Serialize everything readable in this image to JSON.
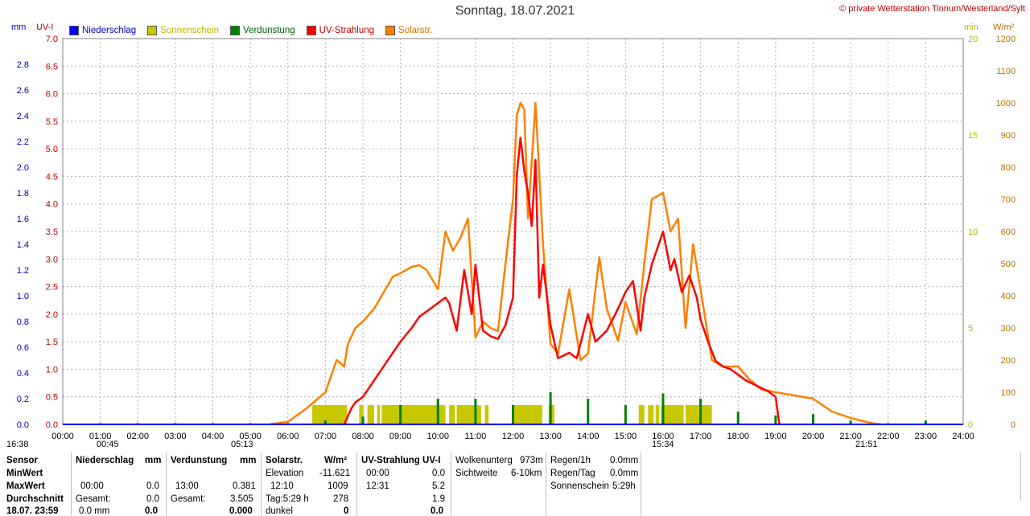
{
  "header": {
    "title": "Sonntag, 18.07.2021",
    "copyright": "© private Wetterstation Tinnum/Westerland/Sylt",
    "unit_mm": "mm",
    "unit_uv": "UV-I",
    "unit_min": "min",
    "unit_wm2": "W/m²"
  },
  "legend": [
    {
      "label": "Niederschlag",
      "color": "#0000ff"
    },
    {
      "label": "Sonnenschein",
      "color": "#c8c800"
    },
    {
      "label": "Verdunstung",
      "color": "#008000"
    },
    {
      "label": "UV-Strahlung",
      "color": "#ff0000"
    },
    {
      "label": "Solarstr.",
      "color": "#ff8000"
    }
  ],
  "colors": {
    "mm_axis": "#0000c0",
    "uv_axis": "#c00000",
    "min_axis": "#b8b800",
    "wm2_axis": "#c07000",
    "rain": "#0000ff",
    "sun": "#c8c800",
    "evap": "#008000",
    "uv": "#ff0000",
    "solar": "#ff8000",
    "grid": "#b0b0b0"
  },
  "chart_data": {
    "type": "line",
    "xlabel": "",
    "xlim": [
      0,
      24
    ],
    "x_ticks": [
      "00:00",
      "01:00",
      "02:00",
      "03:00",
      "04:00",
      "05:00",
      "06:00",
      "07:00",
      "08:00",
      "09:00",
      "10:00",
      "11:00",
      "12:00",
      "13:00",
      "14:00",
      "15:00",
      "16:00",
      "17:00",
      "18:00",
      "19:00",
      "20:00",
      "21:00",
      "22:00",
      "23:00",
      "24:00"
    ],
    "axes": {
      "mm": {
        "ticks": [
          "0.0",
          "0.2",
          "0.4",
          "0.6",
          "0.8",
          "1.0",
          "1.2",
          "1.4",
          "1.6",
          "1.8",
          "2.0",
          "2.2",
          "2.4",
          "2.6",
          "2.8"
        ],
        "range": [
          0,
          3.0
        ]
      },
      "uv": {
        "ticks": [
          "0.0",
          "0.5",
          "1.0",
          "1.5",
          "2.0",
          "2.5",
          "3.0",
          "3.5",
          "4.0",
          "4.5",
          "5.0",
          "5.5",
          "6.0",
          "6.5",
          "7.0"
        ],
        "range": [
          0,
          7.0
        ]
      },
      "min": {
        "ticks": [
          "0",
          "5",
          "10",
          "15",
          "20"
        ],
        "range": [
          0,
          20
        ]
      },
      "wm2": {
        "ticks": [
          "0",
          "100",
          "200",
          "300",
          "400",
          "500",
          "600",
          "700",
          "800",
          "900",
          "1000",
          "1100",
          "1200"
        ],
        "range": [
          0,
          1200
        ]
      }
    },
    "grid": true,
    "series": [
      {
        "name": "Solarstr.",
        "axis": "wm2",
        "x": [
          5.5,
          6.0,
          6.5,
          7.0,
          7.3,
          7.5,
          7.6,
          7.8,
          8.0,
          8.3,
          8.5,
          8.8,
          9.0,
          9.3,
          9.5,
          9.7,
          10.0,
          10.2,
          10.4,
          10.6,
          10.8,
          11.0,
          11.2,
          11.4,
          11.6,
          11.8,
          12.0,
          12.1,
          12.2,
          12.3,
          12.4,
          12.6,
          12.8,
          13.0,
          13.2,
          13.5,
          13.8,
          14.0,
          14.3,
          14.5,
          14.8,
          15.0,
          15.3,
          15.5,
          15.7,
          16.0,
          16.2,
          16.4,
          16.6,
          16.8,
          17.0,
          17.3,
          17.6,
          18.0,
          18.3,
          18.6,
          19.0,
          19.5,
          20.0,
          20.5,
          21.0,
          21.5,
          21.8
        ],
        "values": [
          0,
          8,
          50,
          100,
          200,
          180,
          250,
          300,
          320,
          360,
          400,
          460,
          470,
          490,
          495,
          480,
          420,
          600,
          540,
          580,
          640,
          270,
          320,
          300,
          290,
          500,
          700,
          960,
          1000,
          980,
          640,
          1000,
          560,
          250,
          220,
          420,
          200,
          220,
          520,
          360,
          260,
          380,
          280,
          500,
          700,
          720,
          600,
          640,
          300,
          560,
          420,
          200,
          180,
          180,
          140,
          110,
          100,
          90,
          80,
          40,
          20,
          5,
          0
        ]
      },
      {
        "name": "UV-Strahlung",
        "axis": "uv",
        "x": [
          7.5,
          7.7,
          7.8,
          8.0,
          8.3,
          8.5,
          8.8,
          9.0,
          9.3,
          9.5,
          9.8,
          10.0,
          10.2,
          10.3,
          10.5,
          10.7,
          10.9,
          11.0,
          11.2,
          11.4,
          11.6,
          11.8,
          12.0,
          12.1,
          12.2,
          12.3,
          12.4,
          12.5,
          12.6,
          12.7,
          12.8,
          13.0,
          13.2,
          13.5,
          13.7,
          14.0,
          14.2,
          14.5,
          14.8,
          15.0,
          15.2,
          15.4,
          15.5,
          15.7,
          16.0,
          16.2,
          16.3,
          16.5,
          16.7,
          16.9,
          17.0,
          17.2,
          17.4,
          17.6,
          17.8,
          18.0,
          18.2,
          18.5,
          18.8,
          19.0,
          19.1
        ],
        "values": [
          0,
          0.3,
          0.4,
          0.5,
          0.8,
          1.0,
          1.3,
          1.5,
          1.75,
          1.95,
          2.1,
          2.2,
          2.3,
          2.2,
          1.7,
          2.8,
          2.0,
          2.9,
          1.7,
          1.6,
          1.55,
          1.8,
          2.3,
          4.5,
          5.2,
          4.6,
          4.2,
          3.6,
          4.8,
          2.3,
          2.9,
          1.8,
          1.2,
          1.3,
          1.2,
          2.0,
          1.5,
          1.7,
          2.1,
          2.4,
          2.6,
          1.7,
          2.3,
          2.9,
          3.5,
          2.8,
          3.0,
          2.4,
          2.7,
          2.3,
          1.9,
          1.5,
          1.15,
          1.05,
          1.0,
          0.9,
          0.8,
          0.7,
          0.6,
          0.5,
          0
        ]
      },
      {
        "name": "Sonnenschein",
        "axis": "min",
        "segments": [
          [
            6.65,
            7.58
          ],
          [
            7.9,
            8.02
          ],
          [
            8.12,
            8.3
          ],
          [
            8.38,
            8.45
          ],
          [
            8.5,
            10.2
          ],
          [
            10.3,
            10.45
          ],
          [
            10.5,
            11.15
          ],
          [
            11.25,
            11.35
          ],
          [
            12.0,
            12.78
          ],
          [
            12.95,
            13.1
          ],
          [
            15.35,
            15.5
          ],
          [
            15.6,
            15.75
          ],
          [
            15.8,
            15.9
          ],
          [
            15.95,
            16.55
          ],
          [
            16.6,
            17.3
          ]
        ],
        "value": 1.0
      },
      {
        "name": "Verdunstung",
        "axis": "mm",
        "x": [
          1.0,
          2.0,
          3.0,
          4.0,
          5.0,
          6.0,
          7.0,
          8.0,
          9.0,
          10.0,
          11.0,
          12.0,
          13.0,
          14.0,
          15.0,
          16.0,
          17.0,
          18.0,
          19.0,
          20.0,
          21.0,
          22.0,
          23.0
        ],
        "values": [
          0.01,
          0.01,
          0.01,
          0.01,
          0.01,
          0.01,
          0.03,
          0.06,
          0.15,
          0.2,
          0.2,
          0.15,
          0.25,
          0.2,
          0.15,
          0.24,
          0.2,
          0.1,
          0.07,
          0.08,
          0.03,
          0.01,
          0.03
        ]
      },
      {
        "name": "Niederschlag",
        "axis": "mm",
        "x": [],
        "values": []
      }
    ],
    "markers": [
      {
        "label": "16:38"
      },
      {
        "label": "00:45"
      },
      {
        "label": "05:13"
      },
      {
        "label": "15:34"
      },
      {
        "label": "21:51"
      }
    ]
  },
  "stats": {
    "rows": [
      "Sensor",
      "MinWert",
      "MaxWert",
      "Durchschnitt",
      "18.07. 23:59"
    ],
    "rain": {
      "h1": "Niederschlag",
      "h2": "mm",
      "max_t": "00:00",
      "max_v": "0.0",
      "sum_l": "Gesamt:",
      "sum_v": "0.0",
      "last": "0.0 mm",
      "last_v": "0.0"
    },
    "evap": {
      "h1": "Verdunstung",
      "h2": "mm",
      "max_t": "13:00",
      "max_v": "0.381",
      "sum_l": "Gesamt:",
      "sum_v": "3.505",
      "last_v": "0.000"
    },
    "solar": {
      "h1": "Solarstr.",
      "h2": "W/m²",
      "elev_l": "Elevation",
      "elev_v": "-11.621",
      "max_t": "12:10",
      "max_v": "1009",
      "tag_l": "Tag:5:29 h",
      "tag_v": "278",
      "dark_l": "dunkel",
      "dark_v": "0"
    },
    "uv": {
      "h1": "UV-Strahlung UV-I",
      "min_t": "00:00",
      "min_v": "0.0",
      "max_t": "12:31",
      "max_v": "5.2",
      "avg_v": "1.9",
      "last_v": "0.0"
    },
    "cloud": {
      "l1": "Wolkenunterg",
      "v1": "973m",
      "l2": "Sichtweite",
      "v2": "6-10km"
    },
    "regen": {
      "l1": "Regen/1h",
      "v1": "0.0mm",
      "l2": "Regen/Tag",
      "v2": "0.0mm",
      "l3": "Sonnenschein",
      "v3": "5:29h"
    }
  }
}
